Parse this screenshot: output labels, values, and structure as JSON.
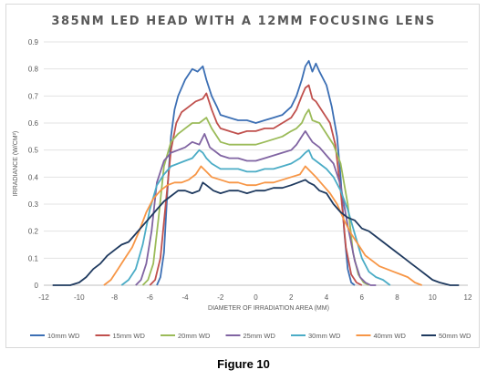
{
  "chart_data": {
    "type": "line",
    "title": "385NM LED HEAD WITH A 12MM FOCUSING LENS",
    "xlabel": "DIAMETER OF IRRADIATION AREA (MM)",
    "ylabel": "IRRADIANCE (W/CM²)",
    "xlim": [
      -12,
      12
    ],
    "ylim": [
      0,
      0.9
    ],
    "xticks": [
      -12,
      -10,
      -8,
      -6,
      -4,
      -2,
      0,
      2,
      4,
      6,
      8,
      10,
      12
    ],
    "yticks": [
      0,
      0.1,
      0.2,
      0.3,
      0.4,
      0.5,
      0.6,
      0.7,
      0.8,
      0.9
    ],
    "grid": "horizontal",
    "legend": "bottom",
    "series": [
      {
        "name": "10mm WD",
        "color": "#3c6fb4",
        "x": [
          -5.6,
          -5.4,
          -5.2,
          -5.0,
          -4.8,
          -4.6,
          -4.4,
          -4.0,
          -3.6,
          -3.3,
          -3.0,
          -2.8,
          -2.5,
          -2.2,
          -2.0,
          -1.5,
          -1.0,
          -0.5,
          0,
          0.5,
          1.0,
          1.5,
          2.0,
          2.3,
          2.6,
          2.8,
          3.0,
          3.2,
          3.4,
          3.6,
          4.0,
          4.3,
          4.6,
          4.8,
          5.0,
          5.2,
          5.4,
          5.6
        ],
        "y": [
          0,
          0.03,
          0.12,
          0.35,
          0.55,
          0.65,
          0.7,
          0.76,
          0.8,
          0.79,
          0.81,
          0.76,
          0.7,
          0.66,
          0.63,
          0.62,
          0.61,
          0.61,
          0.6,
          0.61,
          0.62,
          0.63,
          0.66,
          0.7,
          0.76,
          0.81,
          0.83,
          0.79,
          0.82,
          0.79,
          0.74,
          0.66,
          0.55,
          0.4,
          0.2,
          0.06,
          0.01,
          0
        ]
      },
      {
        "name": "15mm WD",
        "color": "#c0504d",
        "x": [
          -6.0,
          -5.7,
          -5.4,
          -5.1,
          -4.8,
          -4.5,
          -4.2,
          -3.8,
          -3.4,
          -3.0,
          -2.8,
          -2.5,
          -2.2,
          -2.0,
          -1.5,
          -1.0,
          -0.5,
          0,
          0.5,
          1.0,
          1.5,
          2.0,
          2.3,
          2.6,
          2.8,
          3.0,
          3.2,
          3.4,
          3.8,
          4.2,
          4.5,
          4.8,
          5.1,
          5.4,
          5.7,
          6.0
        ],
        "y": [
          0,
          0.02,
          0.1,
          0.3,
          0.5,
          0.6,
          0.64,
          0.66,
          0.68,
          0.69,
          0.71,
          0.65,
          0.6,
          0.58,
          0.57,
          0.56,
          0.57,
          0.57,
          0.58,
          0.58,
          0.6,
          0.62,
          0.65,
          0.7,
          0.73,
          0.74,
          0.69,
          0.68,
          0.64,
          0.6,
          0.52,
          0.35,
          0.14,
          0.04,
          0.01,
          0
        ]
      },
      {
        "name": "20mm WD",
        "color": "#9bbb59",
        "x": [
          -6.4,
          -6.1,
          -5.8,
          -5.5,
          -5.2,
          -4.8,
          -4.4,
          -4.0,
          -3.6,
          -3.2,
          -2.8,
          -2.5,
          -2.2,
          -2.0,
          -1.5,
          -1.0,
          -0.5,
          0,
          0.5,
          1.0,
          1.5,
          2.0,
          2.3,
          2.6,
          2.8,
          3.0,
          3.2,
          3.6,
          4.0,
          4.4,
          4.8,
          5.2,
          5.5,
          5.8,
          6.1,
          6.4
        ],
        "y": [
          0,
          0.02,
          0.08,
          0.25,
          0.44,
          0.53,
          0.56,
          0.58,
          0.6,
          0.6,
          0.62,
          0.58,
          0.55,
          0.53,
          0.52,
          0.52,
          0.52,
          0.52,
          0.53,
          0.54,
          0.55,
          0.57,
          0.58,
          0.6,
          0.63,
          0.65,
          0.61,
          0.6,
          0.56,
          0.52,
          0.45,
          0.3,
          0.12,
          0.04,
          0.01,
          0
        ]
      },
      {
        "name": "25mm WD",
        "color": "#8064a2",
        "x": [
          -6.8,
          -6.5,
          -6.2,
          -5.9,
          -5.6,
          -5.2,
          -4.8,
          -4.4,
          -4.0,
          -3.6,
          -3.2,
          -2.9,
          -2.6,
          -2.2,
          -2.0,
          -1.5,
          -1.0,
          -0.5,
          0,
          0.5,
          1.0,
          1.5,
          2.0,
          2.3,
          2.6,
          2.8,
          3.0,
          3.2,
          3.6,
          4.0,
          4.4,
          4.8,
          5.2,
          5.6,
          5.9,
          6.2,
          6.5,
          6.8
        ],
        "y": [
          0,
          0.02,
          0.08,
          0.2,
          0.38,
          0.46,
          0.49,
          0.5,
          0.51,
          0.53,
          0.52,
          0.56,
          0.51,
          0.49,
          0.48,
          0.47,
          0.47,
          0.46,
          0.46,
          0.47,
          0.48,
          0.49,
          0.5,
          0.52,
          0.55,
          0.57,
          0.55,
          0.53,
          0.51,
          0.48,
          0.45,
          0.37,
          0.22,
          0.09,
          0.03,
          0.01,
          0,
          0
        ]
      },
      {
        "name": "30mm WD",
        "color": "#4bacc6",
        "x": [
          -7.6,
          -7.2,
          -6.8,
          -6.4,
          -6.0,
          -5.6,
          -5.2,
          -4.8,
          -4.4,
          -4.0,
          -3.6,
          -3.2,
          -3.0,
          -2.8,
          -2.5,
          -2.0,
          -1.5,
          -1.0,
          -0.5,
          0,
          0.5,
          1.0,
          1.5,
          2.0,
          2.5,
          2.8,
          3.0,
          3.2,
          3.6,
          4.0,
          4.4,
          4.8,
          5.2,
          5.6,
          6.0,
          6.4,
          6.8,
          7.2,
          7.6
        ],
        "y": [
          0,
          0.02,
          0.06,
          0.15,
          0.28,
          0.37,
          0.41,
          0.44,
          0.45,
          0.46,
          0.47,
          0.5,
          0.49,
          0.47,
          0.45,
          0.43,
          0.43,
          0.43,
          0.42,
          0.42,
          0.43,
          0.43,
          0.44,
          0.45,
          0.47,
          0.49,
          0.5,
          0.47,
          0.45,
          0.43,
          0.4,
          0.35,
          0.28,
          0.19,
          0.1,
          0.05,
          0.03,
          0.02,
          0
        ]
      },
      {
        "name": "40mm WD",
        "color": "#f79646",
        "x": [
          -8.6,
          -8.2,
          -7.8,
          -7.4,
          -7.0,
          -6.6,
          -6.2,
          -5.8,
          -5.4,
          -5.0,
          -4.6,
          -4.2,
          -3.8,
          -3.4,
          -3.1,
          -2.8,
          -2.5,
          -2.0,
          -1.5,
          -1.0,
          -0.5,
          0,
          0.5,
          1.0,
          1.5,
          2.0,
          2.5,
          2.8,
          3.1,
          3.4,
          3.8,
          4.2,
          4.6,
          5.0,
          5.4,
          5.8,
          6.2,
          6.6,
          7.0,
          7.4,
          7.8,
          8.2,
          8.6,
          9.0,
          9.4
        ],
        "y": [
          0,
          0.02,
          0.06,
          0.1,
          0.14,
          0.2,
          0.27,
          0.32,
          0.35,
          0.37,
          0.38,
          0.38,
          0.39,
          0.41,
          0.44,
          0.42,
          0.4,
          0.39,
          0.38,
          0.38,
          0.37,
          0.37,
          0.38,
          0.38,
          0.39,
          0.4,
          0.41,
          0.44,
          0.42,
          0.4,
          0.37,
          0.34,
          0.3,
          0.24,
          0.19,
          0.15,
          0.11,
          0.09,
          0.07,
          0.06,
          0.05,
          0.04,
          0.03,
          0.01,
          0
        ]
      },
      {
        "name": "50mm WD",
        "color": "#1f3a5f",
        "x": [
          -11.5,
          -10.5,
          -10.0,
          -9.6,
          -9.2,
          -8.8,
          -8.4,
          -8.0,
          -7.6,
          -7.2,
          -6.8,
          -6.4,
          -6.0,
          -5.6,
          -5.2,
          -4.8,
          -4.4,
          -4.0,
          -3.6,
          -3.2,
          -3.0,
          -2.8,
          -2.4,
          -2.0,
          -1.5,
          -1.0,
          -0.5,
          0,
          0.5,
          1.0,
          1.5,
          2.0,
          2.4,
          2.8,
          3.0,
          3.3,
          3.6,
          4.0,
          4.4,
          4.8,
          5.2,
          5.6,
          6.0,
          6.4,
          6.8,
          7.2,
          7.6,
          8.0,
          8.4,
          8.8,
          9.2,
          9.6,
          10.0,
          10.4,
          11.0,
          11.5
        ],
        "y": [
          0,
          0,
          0.01,
          0.03,
          0.06,
          0.08,
          0.11,
          0.13,
          0.15,
          0.16,
          0.19,
          0.22,
          0.25,
          0.28,
          0.31,
          0.33,
          0.35,
          0.35,
          0.34,
          0.35,
          0.38,
          0.37,
          0.35,
          0.34,
          0.35,
          0.35,
          0.34,
          0.35,
          0.35,
          0.36,
          0.36,
          0.37,
          0.38,
          0.39,
          0.38,
          0.37,
          0.35,
          0.34,
          0.3,
          0.27,
          0.25,
          0.24,
          0.21,
          0.2,
          0.18,
          0.16,
          0.14,
          0.12,
          0.1,
          0.08,
          0.06,
          0.04,
          0.02,
          0.01,
          0,
          0
        ]
      }
    ]
  },
  "caption": "Figure 10"
}
